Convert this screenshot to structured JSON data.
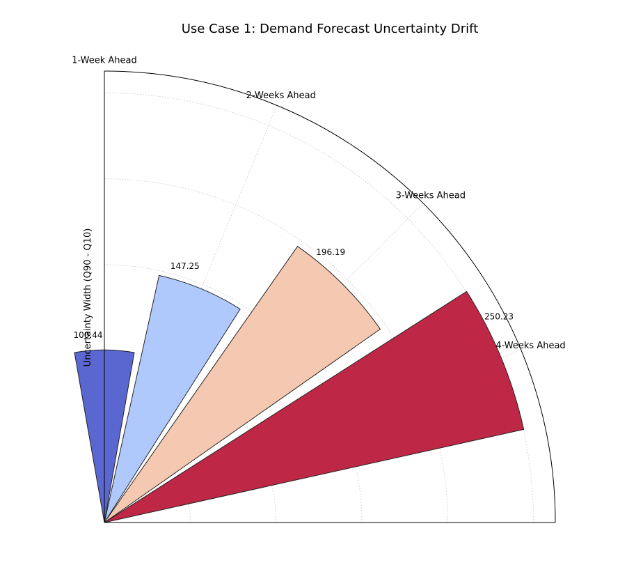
{
  "chart_data": {
    "type": "bar",
    "polar": true,
    "title": "Use Case 1: Demand Forecast Uncertainty Drift",
    "ylabel": "Uncertainty Width (Q90 - Q10)",
    "categories": [
      "1-Week Ahead",
      "2-Weeks Ahead",
      "3-Weeks Ahead",
      "4-Weeks Ahead"
    ],
    "values": [
      100.44,
      147.25,
      196.19,
      250.23
    ],
    "value_labels": [
      "100.44",
      "147.25",
      "196.19",
      "250.23"
    ],
    "angles_deg": [
      90,
      67.5,
      45,
      22.5
    ],
    "bar_width_deg": 20,
    "rlim": [
      0,
      262.7
    ],
    "grid": true,
    "colors": [
      "#5a67d0",
      "#b0c9fd",
      "#f5c8b2",
      "#be2846"
    ],
    "edge_color": "#222222"
  }
}
